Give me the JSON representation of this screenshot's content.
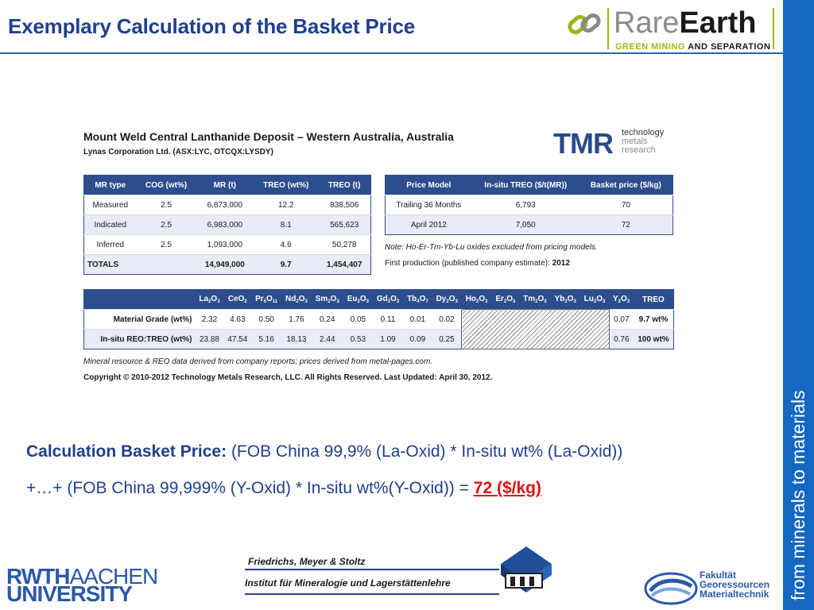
{
  "slide": {
    "title": "Exemplary Calculation of the Basket Price",
    "side_band_text": "from minerals to materials"
  },
  "brand": {
    "rare": "Rare",
    "earth": "Earth",
    "tagline_a": "GREEN MINING",
    "tagline_b": "AND SEPARATION",
    "colors": {
      "green": "#9bb81a",
      "grey": "#8a8a8a"
    }
  },
  "report": {
    "title": "Mount Weld Central Lanthanide Deposit – Western Australia, Australia",
    "subtitle": "Lynas Corporation Ltd. (ASX:LYC, OTCQX:LYSDY)",
    "tmr_logo": "TMR",
    "tmr_words": [
      "technology",
      "metals",
      "research"
    ],
    "mr_table": {
      "headers": [
        "MR type",
        "COG (wt%)",
        "MR (t)",
        "TREO (wt%)",
        "TREO (t)"
      ],
      "rows": [
        [
          "Measured",
          "2.5",
          "6,873,000",
          "12.2",
          "838,506"
        ],
        [
          "Indicated",
          "2.5",
          "6,983,000",
          "8.1",
          "565,623"
        ],
        [
          "Inferred",
          "2.5",
          "1,093,000",
          "4.6",
          "50,278"
        ],
        [
          "TOTALS",
          "",
          "14,949,000",
          "9.7",
          "1,454,407"
        ]
      ]
    },
    "price_table": {
      "headers": [
        "Price Model",
        "In-situ TREO ($/t(MR))",
        "Basket price ($/kg)"
      ],
      "rows": [
        [
          "Trailing 36 Months",
          "6,793",
          "70"
        ],
        [
          "April 2012",
          "7,050",
          "72"
        ]
      ]
    },
    "note_excluded": "Note: Ho-Er-Tm-Yb-Lu oxides excluded from pricing models.",
    "first_production_label": "First production (published company estimate):",
    "first_production_year": "2012",
    "oxide_table": {
      "headers": [
        {
          "el": "La",
          "a": "2",
          "o": "3"
        },
        {
          "el": "Ce",
          "a": "",
          "o": "2"
        },
        {
          "el": "Pr",
          "a": "6",
          "o": "11"
        },
        {
          "el": "Nd",
          "a": "2",
          "o": "3"
        },
        {
          "el": "Sm",
          "a": "2",
          "o": "3"
        },
        {
          "el": "Eu",
          "a": "2",
          "o": "3"
        },
        {
          "el": "Gd",
          "a": "2",
          "o": "3"
        },
        {
          "el": "Tb",
          "a": "4",
          "o": "7"
        },
        {
          "el": "Dy",
          "a": "2",
          "o": "3"
        },
        {
          "el": "Ho",
          "a": "2",
          "o": "3"
        },
        {
          "el": "Er",
          "a": "2",
          "o": "3"
        },
        {
          "el": "Tm",
          "a": "2",
          "o": "3"
        },
        {
          "el": "Yb",
          "a": "2",
          "o": "3"
        },
        {
          "el": "Lu",
          "a": "2",
          "o": "3"
        },
        {
          "el": "Y",
          "a": "2",
          "o": "3"
        }
      ],
      "treo_header": "TREO",
      "rows": [
        {
          "label": "Material Grade (wt%)",
          "values": [
            "2.32",
            "4.63",
            "0.50",
            "1.76",
            "0.24",
            "0.05",
            "0.11",
            "0.01",
            "0.02"
          ],
          "y": "0.07",
          "treo": "9.7 wt%"
        },
        {
          "label": "In-situ REO:TREO (wt%)",
          "values": [
            "23.88",
            "47.54",
            "5.16",
            "18.13",
            "2.44",
            "0.53",
            "1.09",
            "0.09",
            "0.25"
          ],
          "y": "0.76",
          "treo": "100 wt%"
        }
      ]
    },
    "source_note": "Mineral resource & REO data derived from company reports; prices derived from metal-pages.com.",
    "copyright": "Copyright © 2010-2012 Technology Metals Research, LLC. All Rights Reserved. Last Updated: April 30, 2012."
  },
  "calculation": {
    "label": "Calculation Basket Price:",
    "line1_rest": "(FOB China 99,9% (La-Oxid) * In-situ wt% (La-Oxid))",
    "line2": "+…+ (FOB China 99,999% (Y-Oxid) * In-situ wt%(Y-Oxid))",
    "equals": "=",
    "result": "72 ($/kg)",
    "result_color": "#e01010"
  },
  "footer": {
    "rwth_bold": "RWTH",
    "rwth_rest": "AACHEN",
    "university": "UNIVERSITY",
    "authors": "Friedrichs, Meyer & Stoltz",
    "institute": "Institut für Mineralogie und Lagerstättenlehre",
    "faculty_lines": [
      "Fakultät",
      "Georessourcen",
      "Materialtechnik"
    ]
  }
}
